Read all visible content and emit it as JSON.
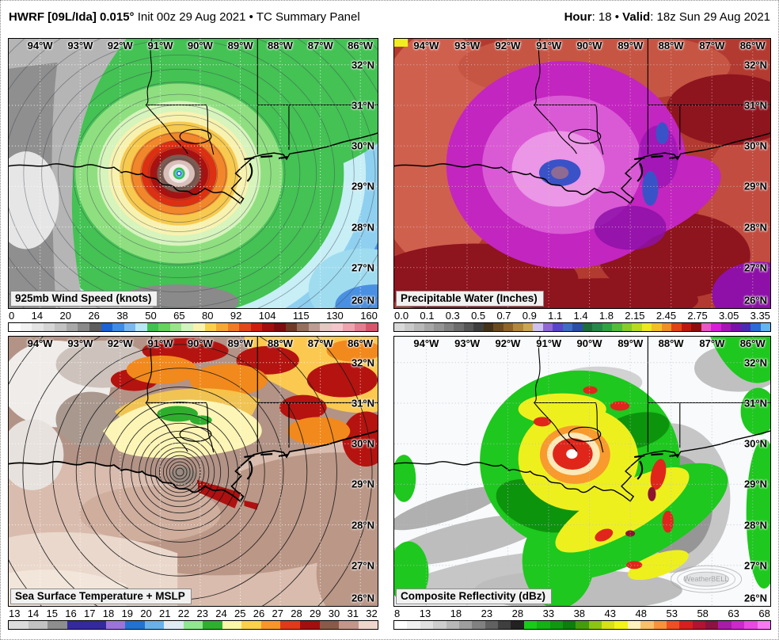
{
  "header": {
    "title_bold": "HWRF [09L/Ida] 0.015°",
    "title_rest": " Init 00z 29 Aug 2021 • TC Summary Panel",
    "hour_label": "Hour",
    "hour_text": ": 18 • ",
    "valid_label": "Valid",
    "valid_text": ": 18z Sun 29 Aug 2021"
  },
  "map_axes": {
    "lon_labels": [
      "94°W",
      "93°W",
      "92°W",
      "91°W",
      "90°W",
      "89°W",
      "88°W",
      "87°W",
      "86°W"
    ],
    "lat_labels": [
      "32°N",
      "31°N",
      "30°N",
      "29°N",
      "28°N",
      "27°N",
      "26°N"
    ]
  },
  "panels": [
    {
      "id": "wind",
      "label": "925mb Wind Speed (knots)",
      "ticks": [
        "0",
        "14",
        "20",
        "26",
        "38",
        "50",
        "65",
        "80",
        "92",
        "104",
        "115",
        "130",
        "160"
      ],
      "colors": [
        "#ffffff",
        "#f2f2f2",
        "#e4e4e4",
        "#d5d5d5",
        "#c2c2c2",
        "#a8a8a8",
        "#8a8a8a",
        "#5e5e5e",
        "#1c63d4",
        "#3f8ce6",
        "#7cb8f0",
        "#b7e8f4",
        "#3fc24f",
        "#66d25f",
        "#9ce48c",
        "#d2f4bf",
        "#f8f3ae",
        "#f7d14b",
        "#f5a835",
        "#f07c28",
        "#e0491a",
        "#cc1f10",
        "#a30e0e",
        "#7e0c10",
        "#6f3a28",
        "#96705f",
        "#bd9c92",
        "#e4c8c2",
        "#f2c6ca",
        "#eda4af",
        "#e37f90",
        "#d6576b"
      ]
    },
    {
      "id": "pwat",
      "label": "Precipitable Water (Inches)",
      "ticks": [
        "0.0",
        "0.1",
        "0.3",
        "0.5",
        "0.7",
        "0.9",
        "1.1",
        "1.4",
        "1.8",
        "2.15",
        "2.45",
        "2.75",
        "3.05",
        "3.35"
      ],
      "colors": [
        "#d9d9d9",
        "#c9c9c9",
        "#b8b8b8",
        "#a6a6a6",
        "#949494",
        "#818181",
        "#6d6d6d",
        "#575757",
        "#3f3f3f",
        "#46311a",
        "#6b4a20",
        "#8f6428",
        "#b2873c",
        "#cba553",
        "#cfc2ee",
        "#8f68d6",
        "#5a46ca",
        "#3f6cc4",
        "#2b4ea6",
        "#1e6e38",
        "#27874a",
        "#2fa344",
        "#53bc3a",
        "#87cc2b",
        "#bada20",
        "#ece921",
        "#f3bf27",
        "#ef8f26",
        "#e04414",
        "#bd1810",
        "#8f0f0f",
        "#e858c8",
        "#d81fd8",
        "#a816b4",
        "#7a14a8",
        "#4a2cb0",
        "#2b6ad8",
        "#63b6ee"
      ]
    },
    {
      "id": "sst",
      "label": "Sea Surface Temperature + MSLP",
      "ticks": [
        "13",
        "14",
        "15",
        "16",
        "17",
        "18",
        "19",
        "20",
        "21",
        "22",
        "23",
        "24",
        "25",
        "26",
        "27",
        "28",
        "29",
        "30",
        "31",
        "32"
      ],
      "colors": [
        "#dcdcdc",
        "#c2c2c2",
        "#8e8e8e",
        "#342a9e",
        "#342a9e",
        "#9b74da",
        "#2273d0",
        "#69b1e8",
        "#dfeaf2",
        "#8fe88f",
        "#2eb02e",
        "#f8f7a8",
        "#fbd04b",
        "#f8962c",
        "#e03a1a",
        "#a30f0f",
        "#8a5a49",
        "#c3968a",
        "#eed6cc"
      ]
    },
    {
      "id": "refl",
      "label": "Composite Reflectivity (dBz)",
      "ticks": [
        "8",
        "13",
        "18",
        "23",
        "28",
        "33",
        "38",
        "43",
        "48",
        "53",
        "58",
        "63",
        "68"
      ],
      "colors": [
        "#ffffff",
        "#f1f1f1",
        "#e1e1e1",
        "#cecece",
        "#b8b8b8",
        "#9e9e9e",
        "#818181",
        "#616161",
        "#3f3f3f",
        "#222222",
        "#18cc18",
        "#14b214",
        "#109810",
        "#0c7e0c",
        "#449c0c",
        "#8cc414",
        "#d8e018",
        "#f4f418",
        "#fdf3bc",
        "#f9c06a",
        "#f8923c",
        "#ef4f24",
        "#d6201e",
        "#b01430",
        "#8c1240",
        "#a81ca8",
        "#cc28cc",
        "#ea48e2",
        "#f87af2"
      ]
    }
  ],
  "watermark": "WeatherBELL"
}
